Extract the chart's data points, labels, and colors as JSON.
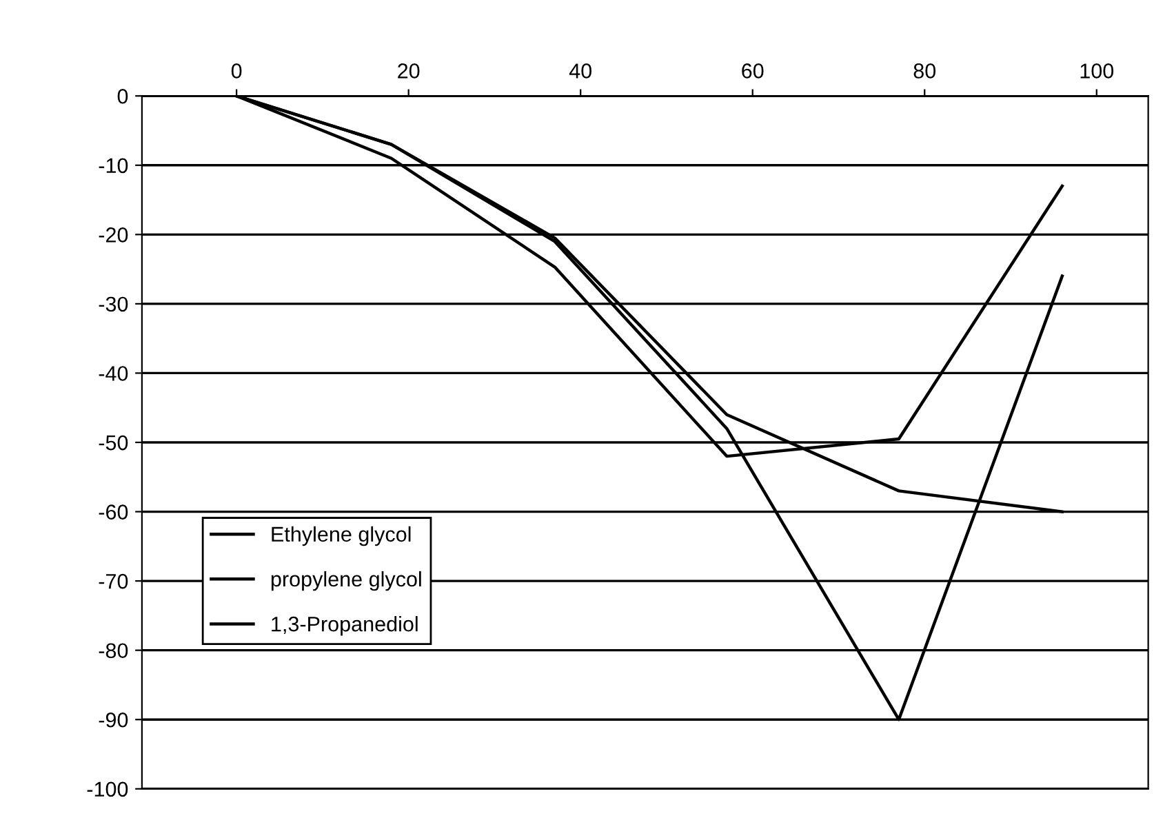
{
  "chart_data": {
    "type": "line",
    "x": [
      0,
      18,
      37,
      57,
      77,
      96
    ],
    "series": [
      {
        "name": "Ethylene glycol",
        "color": "#000000",
        "values": [
          0,
          -9,
          -24.7,
          -52,
          -49.5,
          -13
        ]
      },
      {
        "name": "propylene glycol",
        "color": "#000000",
        "values": [
          0,
          -7,
          -20.5,
          -46,
          -57,
          -60
        ]
      },
      {
        "name": "1,3-Propanediol",
        "color": "#000000",
        "values": [
          0,
          -7,
          -21,
          -48,
          -90,
          -26
        ]
      }
    ],
    "xlim": [
      -11,
      106
    ],
    "xticks": [
      0,
      20,
      40,
      60,
      80,
      100
    ],
    "ylim": [
      -100,
      0
    ],
    "yticks": [
      -100,
      -90,
      -80,
      -70,
      -60,
      -50,
      -40,
      -30,
      -20,
      -10,
      0
    ],
    "grid": "y",
    "legend": "left",
    "marker": "none",
    "line_style": "solid"
  }
}
